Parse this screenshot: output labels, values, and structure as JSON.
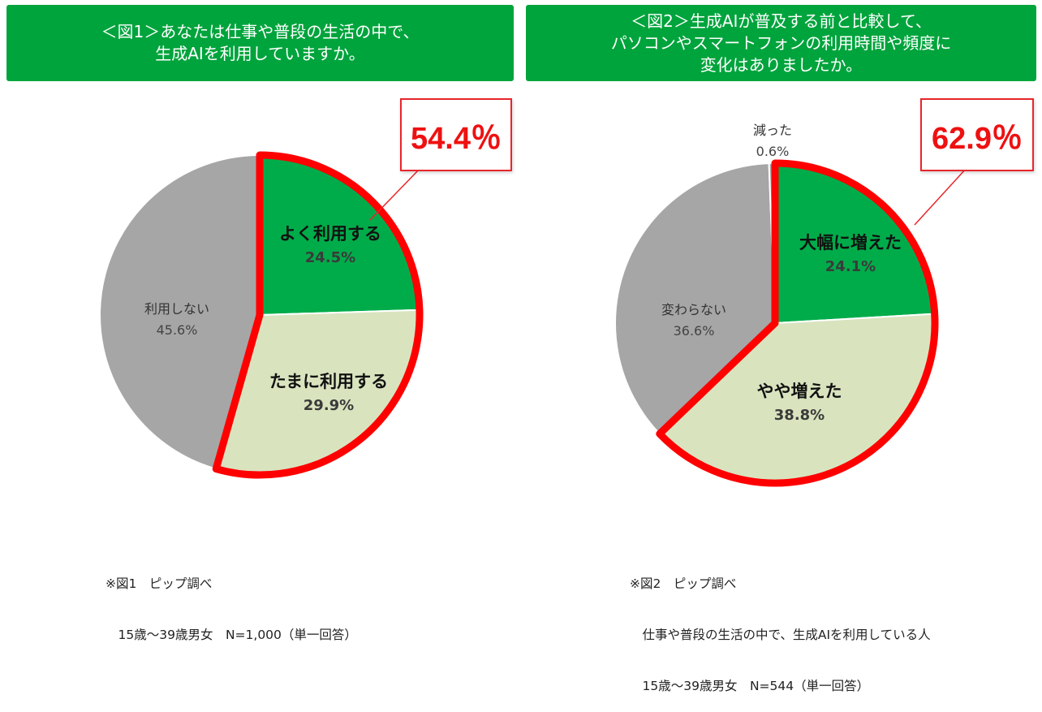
{
  "colors": {
    "header_bg": "#00a43c",
    "slice_dark_green": "#00ac4a",
    "slice_light_green": "#d9e4bf",
    "slice_gray": "#a6a6a6",
    "highlight_red": "#ff0000",
    "callout_text": "#ee1111"
  },
  "figure1": {
    "header_lines": [
      "＜図1＞あなたは仕事や普段の生活の中で、",
      "生成AIを利用していますか。"
    ],
    "callout": "54.4％",
    "note_lines": [
      "※図1　ピップ調べ",
      "　15歳～39歳男女　N=1,000（単一回答）"
    ]
  },
  "figure2": {
    "header_lines": [
      "＜図2＞生成AIが普及する前と比較して、",
      "パソコンやスマートフォンの利用時間や頻度に",
      "変化はありましたか。"
    ],
    "callout": "62.9％",
    "note_lines": [
      "※図2　ピップ調べ",
      "　仕事や普段の生活の中で、生成AIを利用している人",
      "　15歳～39歳男女　N=544（単一回答）"
    ]
  },
  "chart_data": [
    {
      "type": "pie",
      "title": "＜図1＞あなたは仕事や普段の生活の中で、生成AIを利用していますか。",
      "categories": [
        "よく利用する",
        "たまに利用する",
        "利用しない"
      ],
      "values": [
        24.5,
        29.9,
        45.6
      ],
      "labels": [
        "24.5%",
        "29.9%",
        "45.6%"
      ],
      "start_angle": "12 o'clock, clockwise",
      "highlight": {
        "slices": [
          "よく利用する",
          "たまに利用する"
        ],
        "total": "54.4%"
      },
      "note": "※図1 ピップ調べ 15歳～39歳男女 N=1,000（単一回答）"
    },
    {
      "type": "pie",
      "title": "＜図2＞生成AIが普及する前と比較して、パソコンやスマートフォンの利用時間や頻度に変化はありましたか。",
      "categories": [
        "大幅に増えた",
        "やや増えた",
        "変わらない",
        "減った"
      ],
      "values": [
        24.1,
        38.8,
        36.6,
        0.6
      ],
      "labels": [
        "24.1%",
        "38.8%",
        "36.6%",
        "0.6%"
      ],
      "start_angle": "12 o'clock, clockwise",
      "highlight": {
        "slices": [
          "大幅に増えた",
          "やや増えた"
        ],
        "total": "62.9%"
      },
      "note": "※図2 ピップ調べ 仕事や普段の生活の中で、生成AIを利用している人 15歳～39歳男女 N=544（単一回答）"
    }
  ]
}
